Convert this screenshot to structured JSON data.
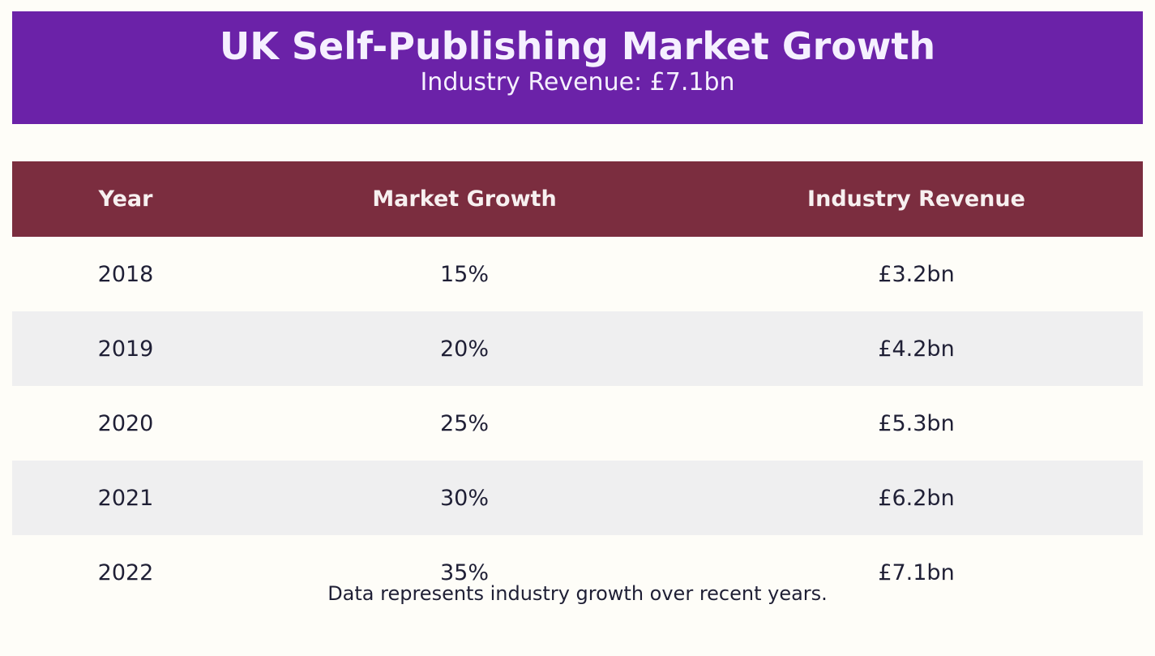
{
  "header": {
    "title": "UK Self-Publishing Market Growth",
    "subtitle": "Industry Revenue: £7.1bn"
  },
  "colors": {
    "banner": "#6b22a8",
    "table_header": "#7b2d3f",
    "alt_row": "#efeff0",
    "background": "#fefdf8"
  },
  "chart_data": {
    "type": "table",
    "columns": [
      "Year",
      "Market Growth",
      "Industry Revenue"
    ],
    "rows": [
      [
        "2018",
        "15%",
        "£3.2bn"
      ],
      [
        "2019",
        "20%",
        "£4.2bn"
      ],
      [
        "2020",
        "25%",
        "£5.3bn"
      ],
      [
        "2021",
        "30%",
        "£6.2bn"
      ],
      [
        "2022",
        "35%",
        "£7.1bn"
      ]
    ]
  },
  "footnote": "Data represents industry growth over recent years."
}
